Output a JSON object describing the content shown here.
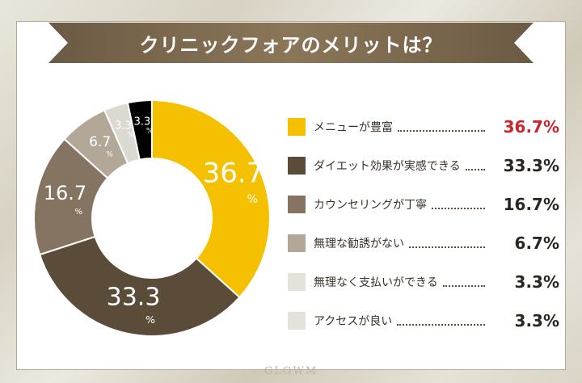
{
  "title": "クリニックフォアのメリットは？",
  "watermark": "GLOWM",
  "chart_data": {
    "type": "pie",
    "style": "donut",
    "title": "クリニックフォアのメリットは？",
    "unit": "%",
    "categories": [
      "メニューが豊富",
      "ダイエット効果が実感できる",
      "カウンセリングが丁寧",
      "無理な勧誘がない",
      "無理なく支払いができる",
      "アクセスが良い"
    ],
    "values": [
      36.7,
      33.3,
      16.7,
      6.7,
      3.3,
      3.3
    ],
    "slice_labels": [
      "36.7",
      "33.3",
      "16.7",
      "6.7",
      "3.3",
      "3.3"
    ],
    "legend_values": [
      "36.7%",
      "33.3%",
      "16.7%",
      "6.7%",
      "3.3%",
      "3.3%"
    ],
    "colors": [
      "#f5c000",
      "#5b4c3a",
      "#857462",
      "#b3a898",
      "#dcd9d0",
      "#000000"
    ],
    "legend_colors": [
      "#f5c000",
      "#5b4c3a",
      "#857462",
      "#b3a898",
      "#e4e2da",
      "#e4e2da"
    ],
    "label_colors": [
      "#ffffff",
      "#ffffff",
      "#ffffff",
      "#ffffff",
      "#ffffff",
      "#ffffff"
    ],
    "highlight_color": "#c9252b",
    "legend_placement": "right"
  }
}
